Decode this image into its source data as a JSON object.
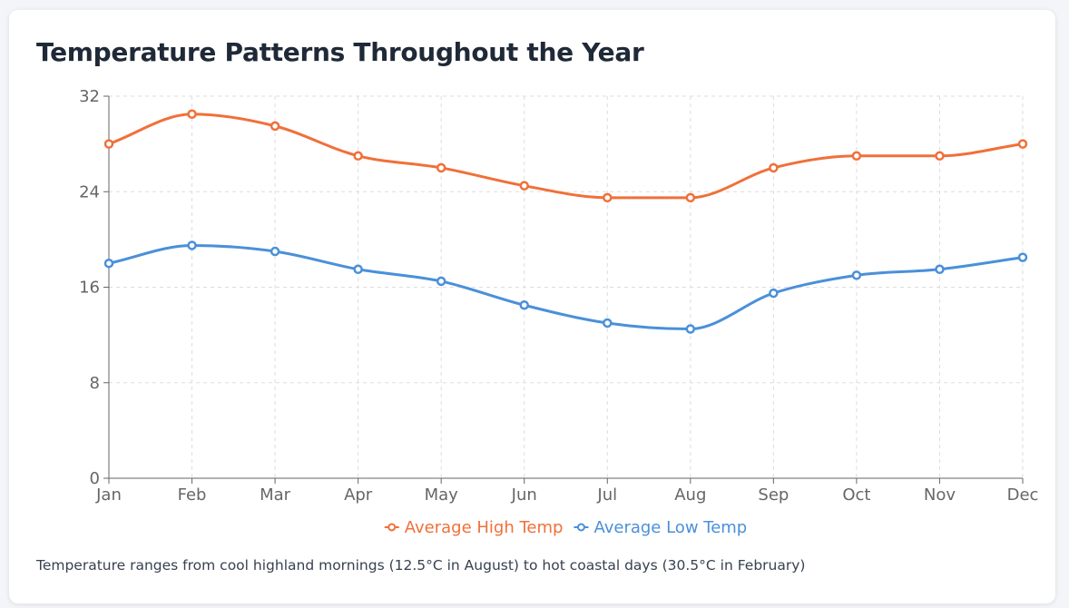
{
  "title": "Temperature Patterns Throughout the Year",
  "caption": "Temperature ranges from cool highland mornings (12.5°C in August) to hot coastal days (30.5°C in February)",
  "chart_data": {
    "type": "line",
    "categories": [
      "Jan",
      "Feb",
      "Mar",
      "Apr",
      "May",
      "Jun",
      "Jul",
      "Aug",
      "Sep",
      "Oct",
      "Nov",
      "Dec"
    ],
    "ylim": [
      0,
      32
    ],
    "yticks": [
      0,
      8,
      16,
      24,
      32
    ],
    "grid": true,
    "legend_position": "bottom",
    "series": [
      {
        "name": "Average High Temp",
        "color": "#f07039",
        "values": [
          28,
          30.5,
          29.5,
          27,
          26,
          24.5,
          23.5,
          23.5,
          26,
          27,
          27,
          28
        ]
      },
      {
        "name": "Average Low Temp",
        "color": "#4a90d9",
        "values": [
          18,
          19.5,
          19,
          17.5,
          16.5,
          14.5,
          13,
          12.5,
          15.5,
          17,
          17.5,
          18.5
        ]
      }
    ]
  }
}
